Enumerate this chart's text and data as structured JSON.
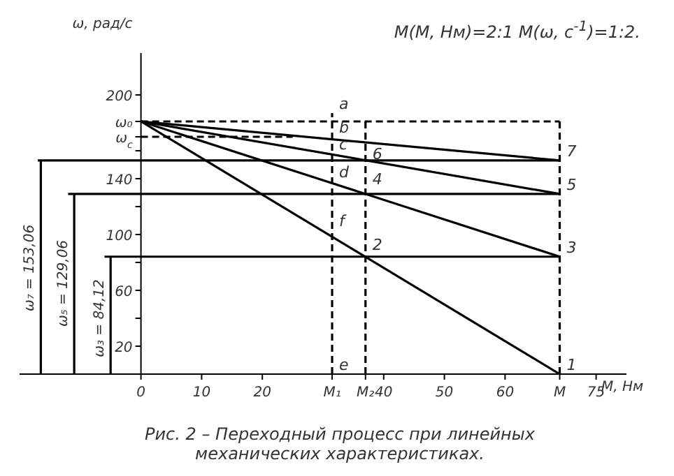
{
  "chart_data": {
    "type": "line",
    "ylabel": "ω, рад/с",
    "xlabel": "M, Нм",
    "xlim": [
      -20,
      80
    ],
    "xticks": [
      0,
      10,
      20,
      {
        "value": 31.5,
        "label": "M₁"
      },
      {
        "value": 37,
        "label": "M₂"
      },
      40,
      50,
      60,
      {
        "value": 69,
        "label": "M"
      },
      75
    ],
    "ylim": [
      0,
      230
    ],
    "yticks": [
      20,
      {
        "value": 40,
        "label": null
      },
      60,
      {
        "value": 80,
        "label": null
      },
      100,
      {
        "value": 120,
        "label": null
      },
      140,
      {
        "value": 160,
        "label": null
      },
      {
        "value": 170,
        "label": "ω$_{c}$"
      },
      {
        "value": 181,
        "label": "ω₀"
      },
      200
    ],
    "marker": "none",
    "series": [
      {
        "color": "#000000",
        "x": [
          0,
          69
        ],
        "values": [
          181,
          0
        ]
      },
      {
        "color": "#000000",
        "x": [
          0,
          69
        ],
        "values": [
          181,
          84.12
        ]
      },
      {
        "color": "#000000",
        "x": [
          0,
          69
        ],
        "values": [
          181,
          129.06
        ]
      },
      {
        "color": "#000000",
        "x": [
          0,
          69
        ],
        "values": [
          181,
          153.06
        ]
      },
      {
        "color": "#000000",
        "x": [
          -17,
          69
        ],
        "values": [
          153.06,
          153.06
        ]
      },
      {
        "color": "#000000",
        "x": [
          -12,
          69
        ],
        "values": [
          129.06,
          129.06
        ]
      },
      {
        "color": "#000000",
        "x": [
          -6,
          69
        ],
        "values": [
          84.12,
          84.12
        ]
      },
      {
        "color": "#000000",
        "x": [
          -16.5,
          -16.5
        ],
        "values": [
          0,
          153.06
        ]
      },
      {
        "color": "#000000",
        "x": [
          -11,
          -11
        ],
        "values": [
          0,
          129.06
        ]
      },
      {
        "color": "#000000",
        "x": [
          -5,
          -5
        ],
        "values": [
          0,
          84.12
        ]
      },
      {
        "color": "#000000",
        "x": [
          0,
          69
        ],
        "values": [
          181,
          181
        ],
        "line_style": "dashed"
      },
      {
        "color": "#000000",
        "x": [
          0,
          25
        ],
        "values": [
          170,
          170
        ],
        "line_style": "dashed"
      },
      {
        "color": "#000000",
        "x": [
          31.5,
          31.5
        ],
        "values": [
          0,
          187
        ],
        "line_style": "dashed"
      },
      {
        "color": "#000000",
        "x": [
          37,
          37
        ],
        "values": [
          0,
          181
        ],
        "line_style": "dashed"
      },
      {
        "color": "#000000",
        "x": [
          69,
          69
        ],
        "values": [
          0,
          181
        ],
        "line_style": "dashed"
      }
    ],
    "annotations": [
      "M(M, Нм)=2:1    M(ω, с$^{-1}$)=1:2.",
      "Рис. 2 – Переходный процесс при линейных механических характеристиках.",
      {
        "text": "ω₇ = 153,06",
        "x": -16.5,
        "y": 76
      },
      {
        "text": "ω₅ = 129,06",
        "x": -11,
        "y": 65
      },
      {
        "text": "ω₃ = 84,12",
        "x": -5,
        "y": 40
      },
      {
        "text": "a",
        "x": 31.5,
        "y": 187
      },
      {
        "text": "b",
        "x": 31.5,
        "y": 170
      },
      {
        "text": "c",
        "x": 31.5,
        "y": 158
      },
      {
        "text": "d",
        "x": 31.5,
        "y": 138
      },
      {
        "text": "f",
        "x": 31.5,
        "y": 103
      },
      {
        "text": "e",
        "x": 31.5,
        "y": 0
      },
      {
        "text": "6",
        "x": 37,
        "y": 151
      },
      {
        "text": "4",
        "x": 37,
        "y": 133
      },
      {
        "text": "2",
        "x": 37,
        "y": 86
      },
      {
        "text": "7",
        "x": 69,
        "y": 153.06
      },
      {
        "text": "5",
        "x": 69,
        "y": 129.06
      },
      {
        "text": "3",
        "x": 69,
        "y": 84.12
      },
      {
        "text": "1",
        "x": 69,
        "y": 0
      }
    ]
  }
}
